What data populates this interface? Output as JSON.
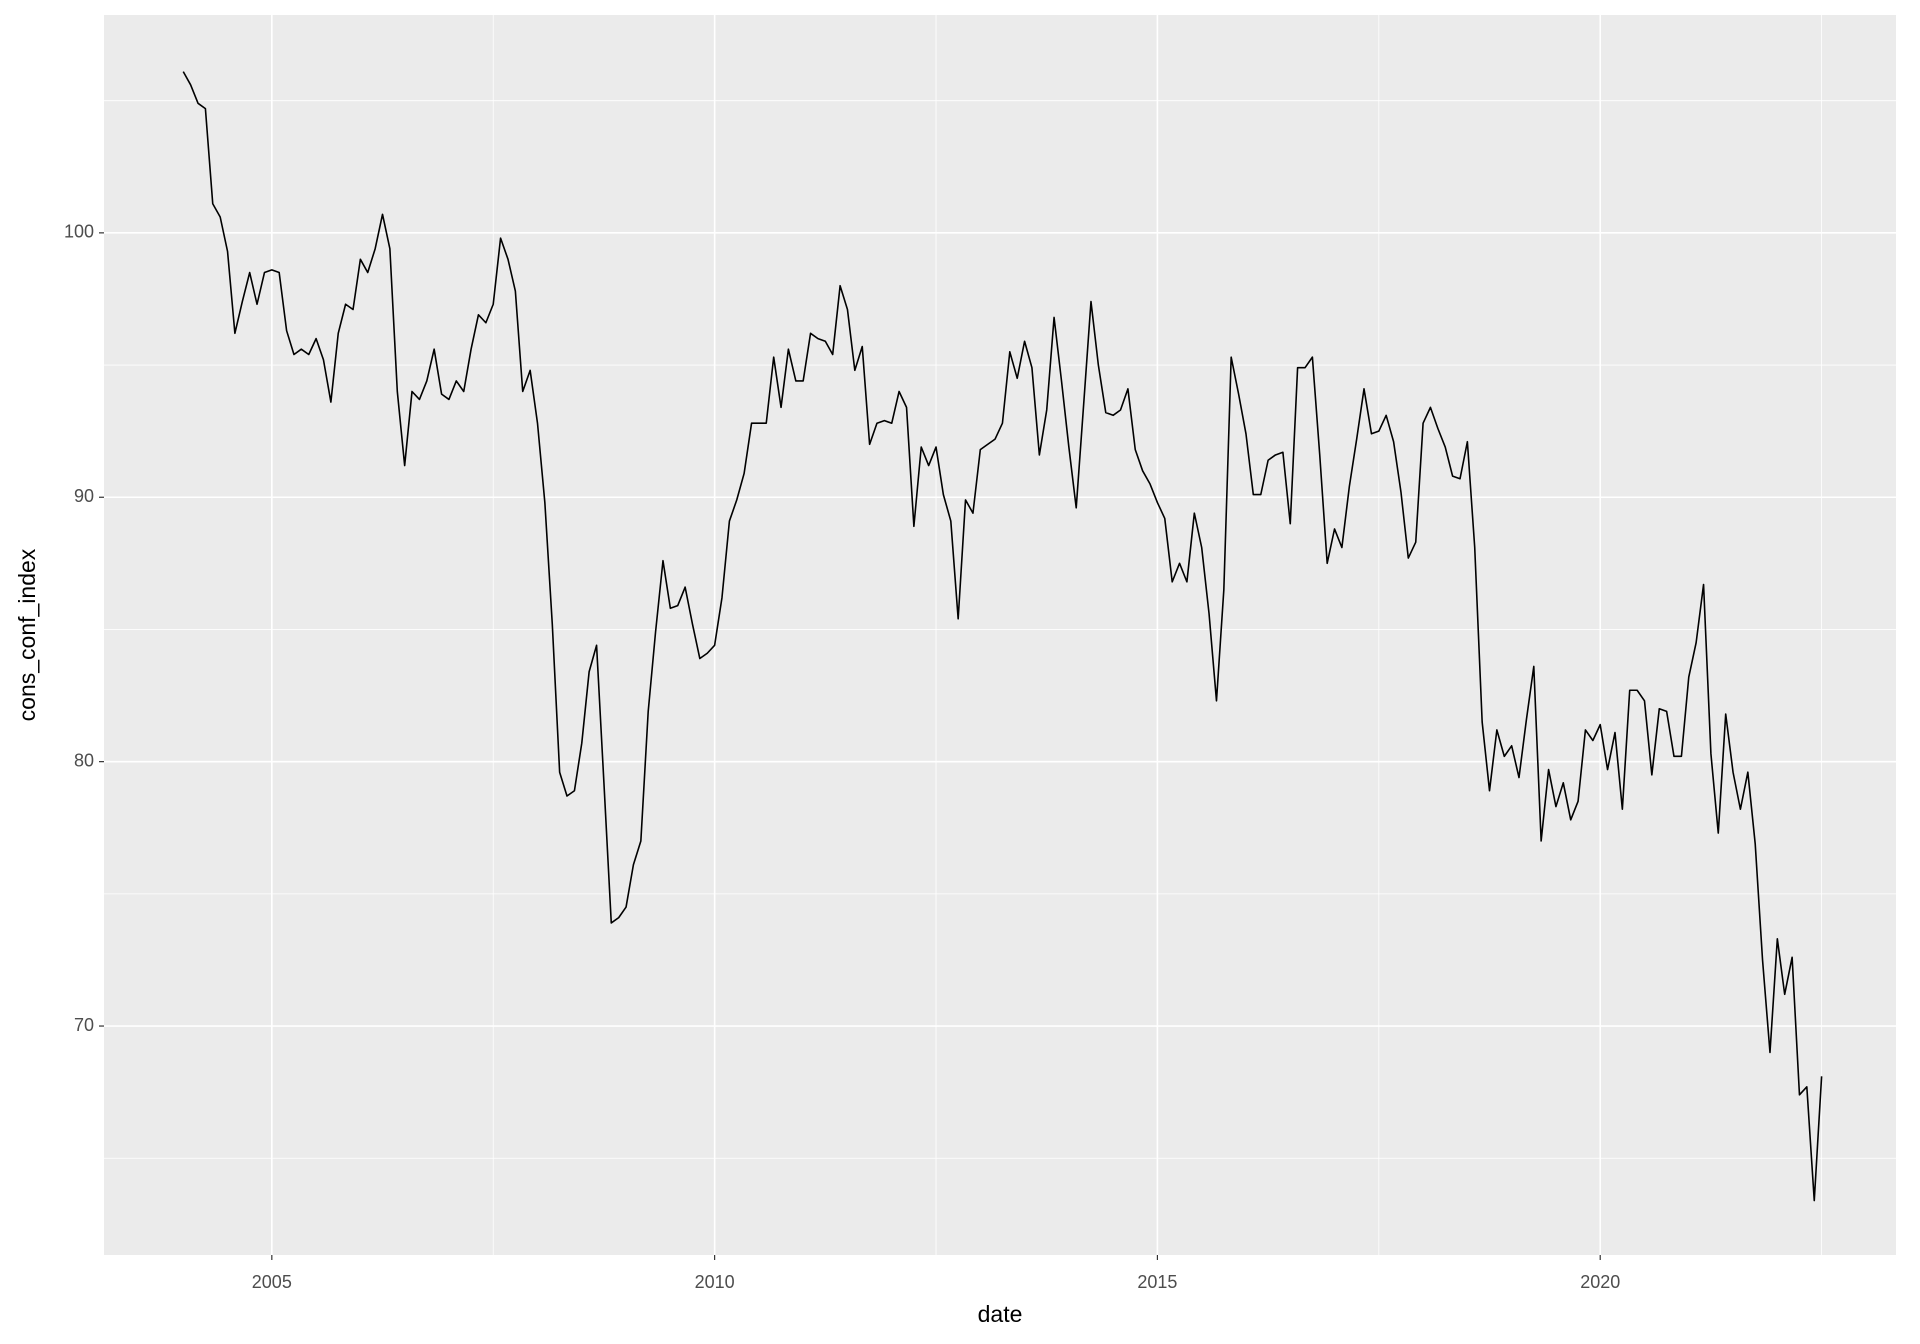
{
  "chart_data": {
    "type": "line",
    "x_label": "date",
    "y_label": "cons_conf_index",
    "color": "#000000",
    "x": [
      2004.0,
      2004.083,
      2004.167,
      2004.25,
      2004.333,
      2004.417,
      2004.5,
      2004.583,
      2004.667,
      2004.75,
      2004.833,
      2004.917,
      2005.0,
      2005.083,
      2005.167,
      2005.25,
      2005.333,
      2005.417,
      2005.5,
      2005.583,
      2005.667,
      2005.75,
      2005.833,
      2005.917,
      2006.0,
      2006.083,
      2006.167,
      2006.25,
      2006.333,
      2006.417,
      2006.5,
      2006.583,
      2006.667,
      2006.75,
      2006.833,
      2006.917,
      2007.0,
      2007.083,
      2007.167,
      2007.25,
      2007.333,
      2007.417,
      2007.5,
      2007.583,
      2007.667,
      2007.75,
      2007.833,
      2007.917,
      2008.0,
      2008.083,
      2008.167,
      2008.25,
      2008.333,
      2008.417,
      2008.5,
      2008.583,
      2008.667,
      2008.75,
      2008.833,
      2008.917,
      2009.0,
      2009.083,
      2009.167,
      2009.25,
      2009.333,
      2009.417,
      2009.5,
      2009.583,
      2009.667,
      2009.75,
      2009.833,
      2009.917,
      2010.0,
      2010.083,
      2010.167,
      2010.25,
      2010.333,
      2010.417,
      2010.5,
      2010.583,
      2010.667,
      2010.75,
      2010.833,
      2010.917,
      2011.0,
      2011.083,
      2011.167,
      2011.25,
      2011.333,
      2011.417,
      2011.5,
      2011.583,
      2011.667,
      2011.75,
      2011.833,
      2011.917,
      2012.0,
      2012.083,
      2012.167,
      2012.25,
      2012.333,
      2012.417,
      2012.5,
      2012.583,
      2012.667,
      2012.75,
      2012.833,
      2012.917,
      2013.0,
      2013.083,
      2013.167,
      2013.25,
      2013.333,
      2013.417,
      2013.5,
      2013.583,
      2013.667,
      2013.75,
      2013.833,
      2013.917,
      2014.0,
      2014.083,
      2014.167,
      2014.25,
      2014.333,
      2014.417,
      2014.5,
      2014.583,
      2014.667,
      2014.75,
      2014.833,
      2014.917,
      2015.0,
      2015.083,
      2015.167,
      2015.25,
      2015.333,
      2015.417,
      2015.5,
      2015.583,
      2015.667,
      2015.75,
      2015.833,
      2015.917,
      2016.0,
      2016.083,
      2016.167,
      2016.25,
      2016.333,
      2016.417,
      2016.5,
      2016.583,
      2016.667,
      2016.75,
      2016.833,
      2016.917,
      2017.0,
      2017.083,
      2017.167,
      2017.25,
      2017.333,
      2017.417,
      2017.5,
      2017.583,
      2017.667,
      2017.75,
      2017.833,
      2017.917,
      2018.0,
      2018.083,
      2018.167,
      2018.25,
      2018.333,
      2018.417,
      2018.5,
      2018.583,
      2018.667,
      2018.75,
      2018.833,
      2018.917,
      2019.0,
      2019.083,
      2019.167,
      2019.25,
      2019.333,
      2019.417,
      2019.5,
      2019.583,
      2019.667,
      2019.75,
      2019.833,
      2019.917,
      2020.0,
      2020.083,
      2020.167,
      2020.25,
      2020.333,
      2020.417,
      2020.5,
      2020.583,
      2020.667,
      2020.75,
      2020.833,
      2020.917,
      2021.0,
      2021.083,
      2021.167,
      2021.25,
      2021.333,
      2021.417,
      2021.5,
      2021.583,
      2021.667,
      2021.75,
      2021.833,
      2021.917,
      2022.0,
      2022.083,
      2022.167,
      2022.25,
      2022.333,
      2022.417,
      2022.5
    ],
    "values": [
      106.1,
      105.6,
      104.9,
      104.7,
      101.1,
      100.6,
      99.3,
      96.2,
      97.4,
      98.5,
      97.3,
      98.5,
      98.6,
      98.5,
      96.3,
      95.4,
      95.6,
      95.4,
      96.0,
      95.2,
      93.6,
      96.2,
      97.3,
      97.1,
      99.0,
      98.5,
      99.4,
      100.7,
      99.4,
      94.0,
      91.2,
      94.0,
      93.7,
      94.4,
      95.6,
      93.9,
      93.7,
      94.4,
      94.0,
      95.6,
      96.9,
      96.6,
      97.3,
      99.8,
      99.0,
      97.8,
      94.0,
      94.8,
      92.8,
      89.8,
      85.2,
      79.6,
      78.7,
      78.9,
      80.7,
      83.4,
      84.4,
      79.2,
      73.9,
      74.1,
      74.5,
      76.1,
      77.0,
      81.9,
      84.9,
      87.6,
      85.8,
      85.9,
      86.6,
      85.2,
      83.9,
      84.1,
      84.4,
      86.2,
      89.1,
      89.9,
      90.9,
      92.8,
      92.8,
      92.8,
      95.3,
      93.4,
      95.6,
      94.4,
      94.4,
      96.2,
      96.0,
      95.9,
      95.4,
      98.0,
      97.1,
      94.8,
      95.7,
      92.0,
      92.8,
      92.9,
      92.8,
      94.0,
      93.4,
      88.9,
      91.9,
      91.2,
      91.9,
      90.1,
      89.1,
      85.4,
      89.9,
      89.4,
      91.8,
      92.0,
      92.2,
      92.8,
      95.5,
      94.5,
      95.9,
      94.9,
      91.6,
      93.3,
      96.8,
      94.4,
      91.9,
      89.6,
      93.5,
      97.4,
      95.0,
      93.2,
      93.1,
      93.3,
      94.1,
      91.8,
      91.0,
      90.5,
      89.8,
      89.2,
      86.8,
      87.5,
      86.8,
      89.4,
      88.1,
      85.6,
      82.3,
      86.5,
      95.3,
      93.9,
      92.4,
      90.1,
      90.1,
      91.4,
      91.6,
      91.7,
      89.0,
      94.9,
      94.9,
      95.3,
      91.6,
      87.5,
      88.8,
      88.1,
      90.4,
      92.2,
      94.1,
      92.4,
      92.5,
      93.1,
      92.1,
      90.2,
      87.7,
      88.3,
      92.8,
      93.4,
      92.6,
      91.9,
      90.8,
      90.7,
      92.1,
      88.1,
      81.5,
      78.9,
      81.2,
      80.2,
      80.6,
      79.4,
      81.6,
      83.6,
      77.0,
      79.7,
      78.3,
      79.2,
      77.8,
      78.5,
      81.2,
      80.8,
      81.4,
      79.7,
      81.1,
      78.2,
      82.7,
      82.7,
      82.3,
      79.5,
      82.0,
      81.9,
      80.2,
      80.2,
      83.2,
      84.5,
      86.7,
      80.3,
      77.3,
      81.8,
      79.6,
      78.2,
      79.6,
      76.9,
      72.5,
      69.0,
      73.3,
      71.2,
      72.6,
      67.4,
      67.7,
      63.4,
      68.1
    ],
    "xlim": [
      2003.105,
      2023.34
    ],
    "ylim": [
      61.34,
      108.24
    ],
    "xticks": [
      2005,
      2010,
      2015,
      2020
    ],
    "yticks": [
      70,
      80,
      90,
      100
    ],
    "xminor": [
      2007.5,
      2012.5,
      2017.5,
      2022.5
    ],
    "yminor": [
      65,
      75,
      85,
      95,
      105
    ],
    "grid": true
  }
}
